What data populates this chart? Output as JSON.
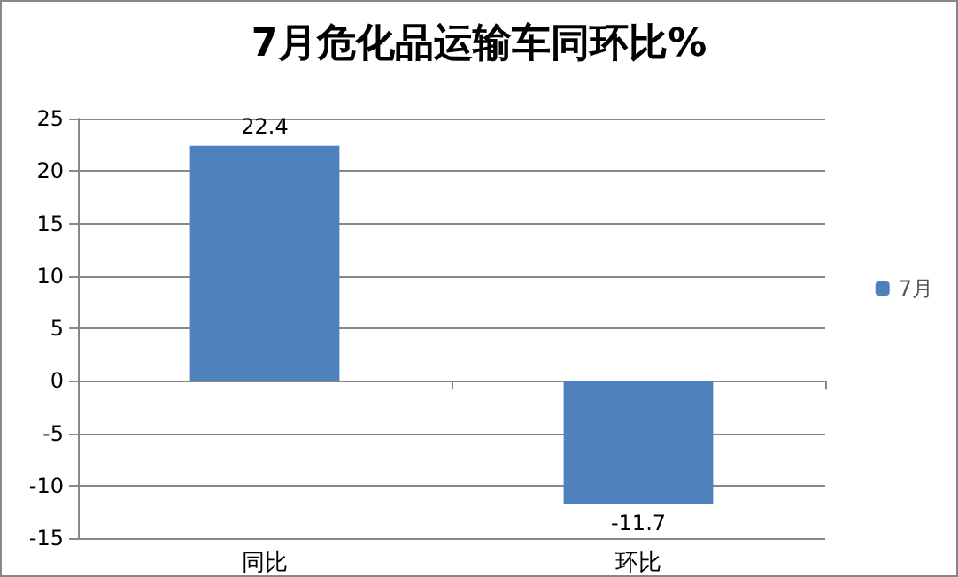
{
  "chart_data": {
    "type": "bar",
    "title": "7月危化品运输车同环比%",
    "categories": [
      "同比",
      "环比"
    ],
    "series": [
      {
        "name": "7月",
        "color": "#4f81bd",
        "values": [
          22.4,
          -11.7
        ]
      }
    ],
    "ylim": [
      -15,
      25
    ],
    "yticks": [
      -15,
      -10,
      -5,
      0,
      5,
      10,
      15,
      20,
      25
    ],
    "grid": "y",
    "legend": "right",
    "data_labels": true
  }
}
